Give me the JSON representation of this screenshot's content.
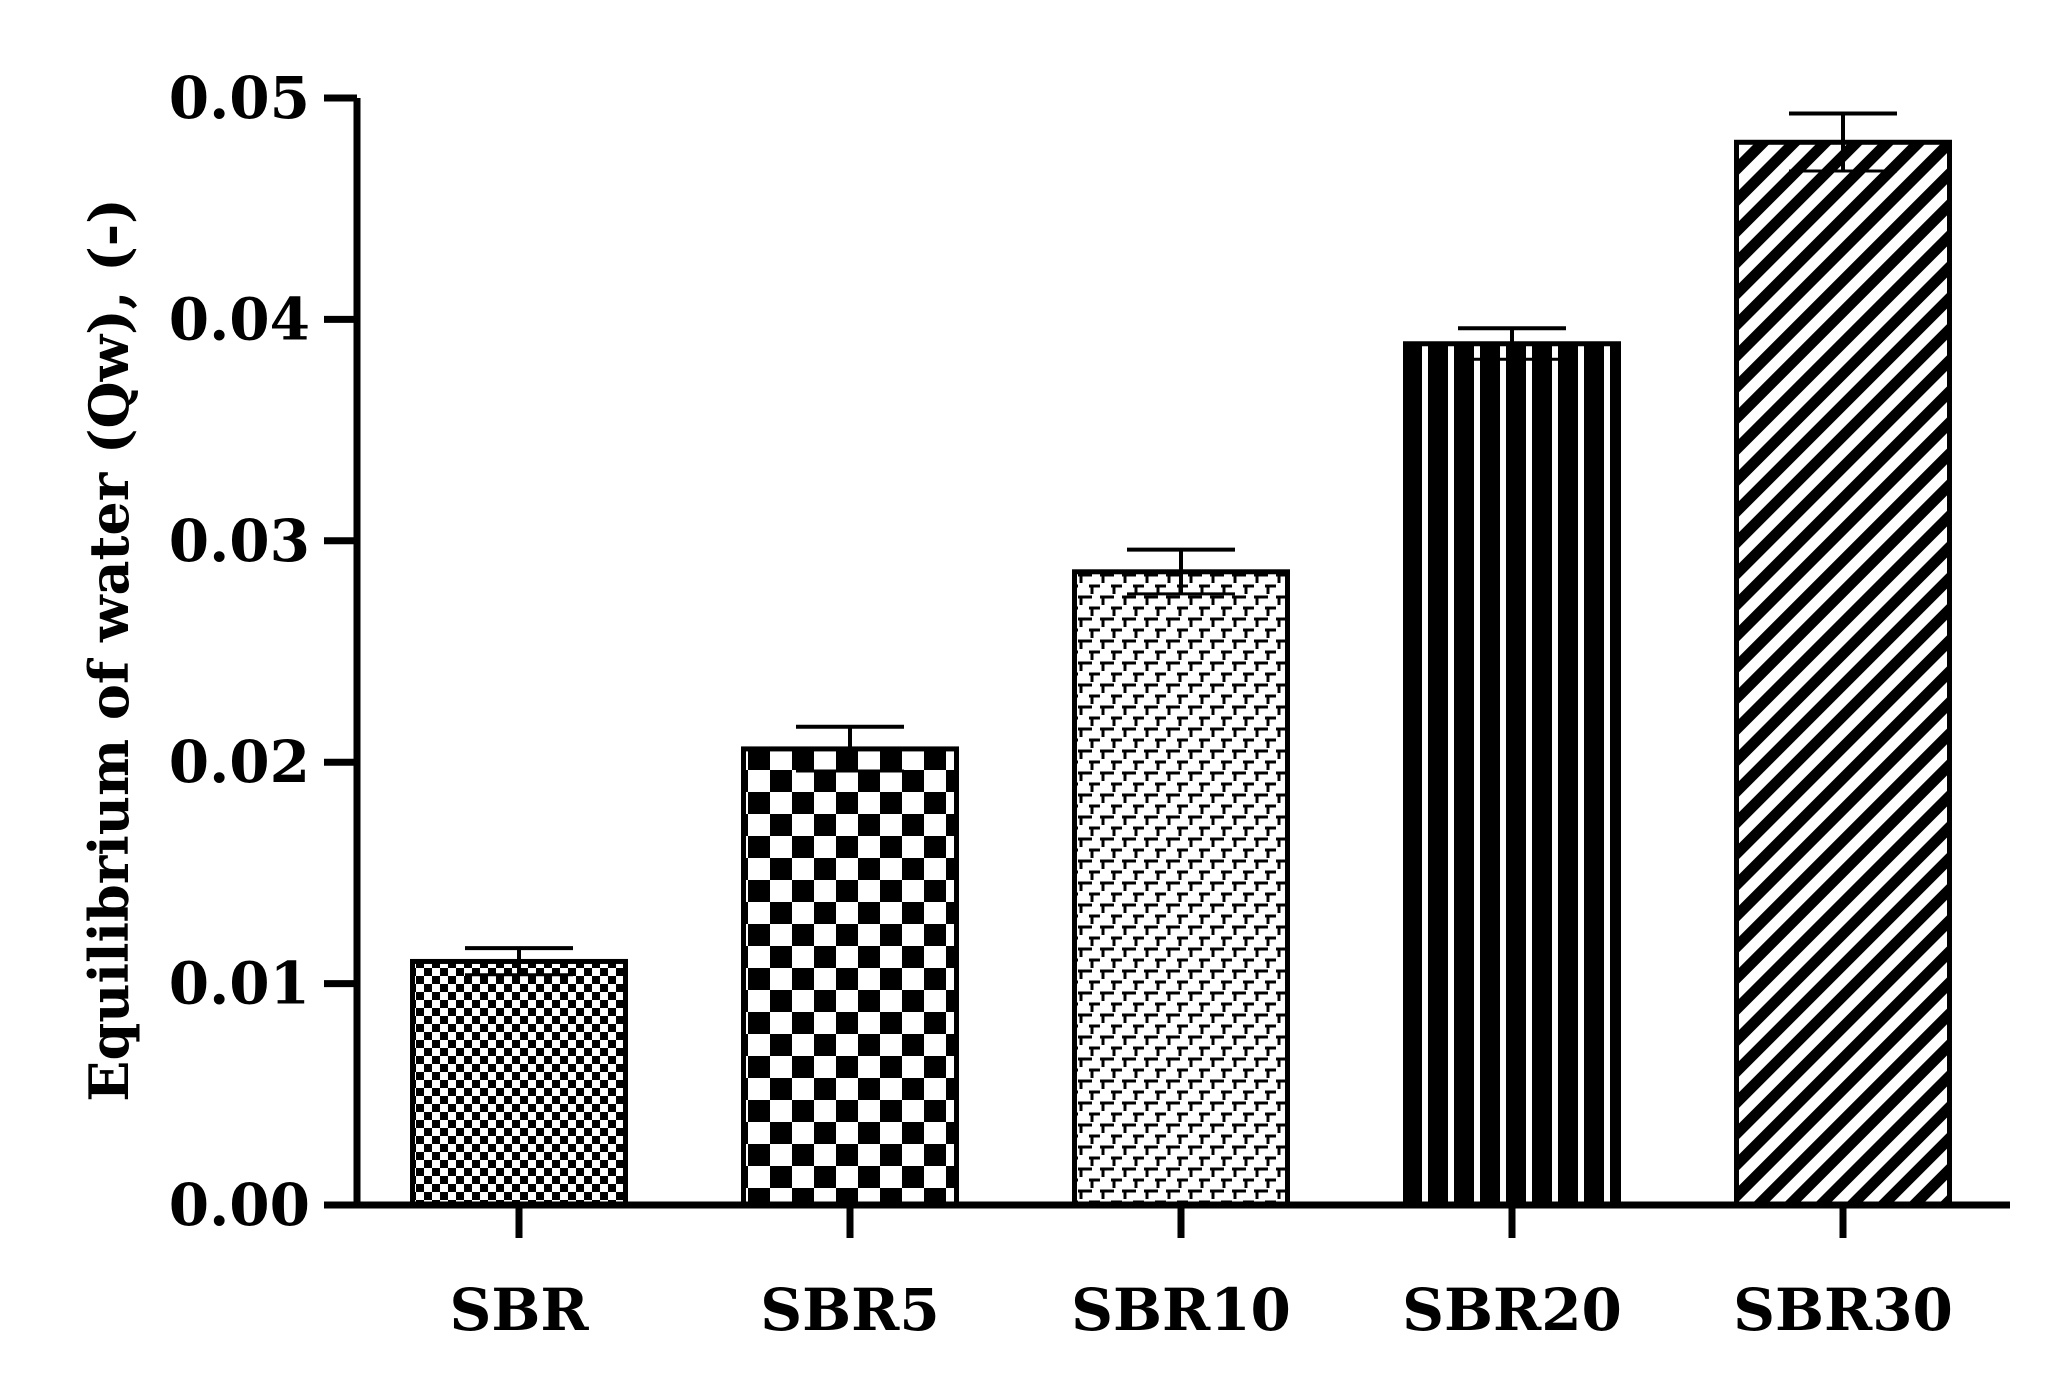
{
  "chart_data": {
    "type": "bar",
    "title": "",
    "xlabel": "",
    "ylabel": "Equilibrium of water (Qw), (-)",
    "categories": [
      "SBR",
      "SBR5",
      "SBR10",
      "SBR20",
      "SBR30"
    ],
    "values": [
      0.011,
      0.0206,
      0.0286,
      0.0389,
      0.048
    ],
    "errors": [
      0.0006,
      0.001,
      0.001,
      0.0007,
      0.0013
    ],
    "ylim": [
      0,
      0.05
    ],
    "yticks": [
      0,
      0.01,
      0.02,
      0.03,
      0.04,
      0.05
    ],
    "ytick_labels": [
      "0.00",
      "0.01",
      "0.02",
      "0.03",
      "0.04",
      "0.05"
    ],
    "fill_patterns": [
      "fine-checker",
      "large-checker",
      "brick",
      "vertical-stripes",
      "diagonal-hatch"
    ],
    "grid": false,
    "legend": "none",
    "colors": {
      "ink": "#000000",
      "background": "#ffffff"
    }
  }
}
